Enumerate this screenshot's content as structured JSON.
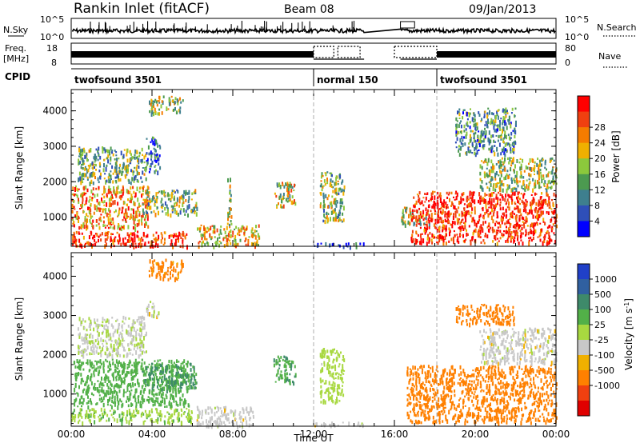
{
  "header": {
    "station": "Rankin Inlet (fitACF)",
    "beam": "Beam 08",
    "date": "09/Jan/2013"
  },
  "nsky_panel": {
    "left_label": "N.Sky",
    "right_label": "N.Search",
    "y_ticks_left": [
      "10^5",
      "10^0"
    ],
    "y_ticks_right": [
      "10^5",
      "10^0"
    ]
  },
  "freq_panel": {
    "left_label_top": "Freq.",
    "left_label_unit": "[MHz]",
    "right_label": "Nave",
    "y_ticks_left": [
      "18",
      "8"
    ],
    "y_ticks_right": [
      "80",
      "0"
    ],
    "dashed_blocks_hours": [
      [
        12.0,
        13.0
      ],
      [
        13.2,
        14.3
      ],
      [
        16.0,
        18.1
      ]
    ]
  },
  "cpid_panel": {
    "label": "CPID",
    "segments": [
      {
        "start_hour": 0.0,
        "name": "twofsound 3501"
      },
      {
        "start_hour": 12.0,
        "name": "normal 150"
      },
      {
        "start_hour": 18.1,
        "name": "twofsound 3501"
      }
    ]
  },
  "chart_data": [
    {
      "type": "heatmap",
      "name": "power",
      "xlabel": "",
      "ylabel": "Slant Range [km]",
      "xlim_hours": [
        0,
        24
      ],
      "ylim_km": [
        180,
        4600
      ],
      "y_ticks": [
        1000,
        2000,
        3000,
        4000
      ],
      "colorbar": {
        "label": "Power [dB]",
        "ticks": [
          "4",
          "8",
          "12",
          "16",
          "20",
          "24",
          "28"
        ],
        "range": [
          0,
          30
        ],
        "colors": [
          "#0000ff",
          "#2f4fb8",
          "#3e7f8e",
          "#4c9a50",
          "#8cc83c",
          "#f0b000",
          "#f57c00",
          "#f04010",
          "#ff0000"
        ]
      },
      "data_gap_hours": [
        14.5,
        16.3
      ],
      "echo_regions": [
        {
          "t": [
            0.0,
            3.8
          ],
          "r": [
            700,
            1900
          ],
          "level": 0.72
        },
        {
          "t": [
            0.0,
            5.8
          ],
          "r": [
            200,
            620
          ],
          "level": 0.9
        },
        {
          "t": [
            0.3,
            3.7
          ],
          "r": [
            2000,
            3000
          ],
          "level": 0.4
        },
        {
          "t": [
            3.7,
            4.4
          ],
          "r": [
            2300,
            3300
          ],
          "level": 0.25
        },
        {
          "t": [
            3.5,
            6.2
          ],
          "r": [
            1100,
            1800
          ],
          "level": 0.45
        },
        {
          "t": [
            3.8,
            5.5
          ],
          "r": [
            3950,
            4450
          ],
          "level": 0.5
        },
        {
          "t": [
            6.2,
            9.3
          ],
          "r": [
            200,
            800
          ],
          "level": 0.6
        },
        {
          "t": [
            7.7,
            7.9
          ],
          "r": [
            700,
            2300
          ],
          "level": 0.5
        },
        {
          "t": [
            10.0,
            11.1
          ],
          "r": [
            1300,
            2000
          ],
          "level": 0.55
        },
        {
          "t": [
            12.0,
            14.5
          ],
          "r": [
            200,
            300
          ],
          "level": 0.15
        },
        {
          "t": [
            12.3,
            13.5
          ],
          "r": [
            900,
            2300
          ],
          "level": 0.45
        },
        {
          "t": [
            16.3,
            17.7
          ],
          "r": [
            800,
            1300
          ],
          "level": 0.5
        },
        {
          "t": [
            16.8,
            24.0
          ],
          "r": [
            300,
            1750
          ],
          "level": 0.92
        },
        {
          "t": [
            20.2,
            24.0
          ],
          "r": [
            1800,
            2700
          ],
          "level": 0.5
        },
        {
          "t": [
            19.0,
            22.0
          ],
          "r": [
            2800,
            4100
          ],
          "level": 0.35
        }
      ]
    },
    {
      "type": "heatmap",
      "name": "velocity",
      "xlabel": "Time UT",
      "ylabel": "Slant Range [km]",
      "xlim_hours": [
        0,
        24
      ],
      "ylim_km": [
        180,
        4600
      ],
      "x_ticks": [
        "00:00",
        "04:00",
        "08:00",
        "12:00",
        "16:00",
        "20:00",
        "00:00"
      ],
      "y_ticks": [
        1000,
        2000,
        3000,
        4000
      ],
      "colorbar": {
        "label": "Velocity [m s^-1]",
        "ticks": [
          "1000",
          "500",
          "100",
          "25",
          "-25",
          "-100",
          "-500",
          "-1000"
        ],
        "colors": [
          "#2040c8",
          "#3060a0",
          "#3e8a6a",
          "#52b048",
          "#a8d840",
          "#c8c8c8",
          "#f0b000",
          "#ff8000",
          "#f04010",
          "#e00000"
        ]
      },
      "data_gap_hours": [
        14.5,
        16.3
      ],
      "echo_regions": [
        {
          "t": [
            0.1,
            5.8
          ],
          "r": [
            700,
            1900
          ],
          "v": 300
        },
        {
          "t": [
            0.3,
            3.7
          ],
          "r": [
            2000,
            3000
          ],
          "v": 20
        },
        {
          "t": [
            3.5,
            6.2
          ],
          "r": [
            1100,
            1800
          ],
          "v": 500
        },
        {
          "t": [
            3.7,
            4.3
          ],
          "r": [
            3000,
            3400
          ],
          "v": 0
        },
        {
          "t": [
            3.8,
            5.5
          ],
          "r": [
            3950,
            4450
          ],
          "v": -150
        },
        {
          "t": [
            0.0,
            6.0
          ],
          "r": [
            300,
            650
          ],
          "v": 80
        },
        {
          "t": [
            6.2,
            9.0
          ],
          "r": [
            200,
            700
          ],
          "v": 0
        },
        {
          "t": [
            10.0,
            11.1
          ],
          "r": [
            1300,
            2000
          ],
          "v": 400
        },
        {
          "t": [
            12.3,
            13.5
          ],
          "r": [
            800,
            2200
          ],
          "v": 60
        },
        {
          "t": [
            12.0,
            14.5
          ],
          "r": [
            200,
            300
          ],
          "v": 0
        },
        {
          "t": [
            16.6,
            24.0
          ],
          "r": [
            300,
            1750
          ],
          "v": -250
        },
        {
          "t": [
            20.2,
            24.0
          ],
          "r": [
            1800,
            2700
          ],
          "v": 0
        },
        {
          "t": [
            19.0,
            22.0
          ],
          "r": [
            2800,
            3300
          ],
          "v": -250
        }
      ]
    }
  ]
}
